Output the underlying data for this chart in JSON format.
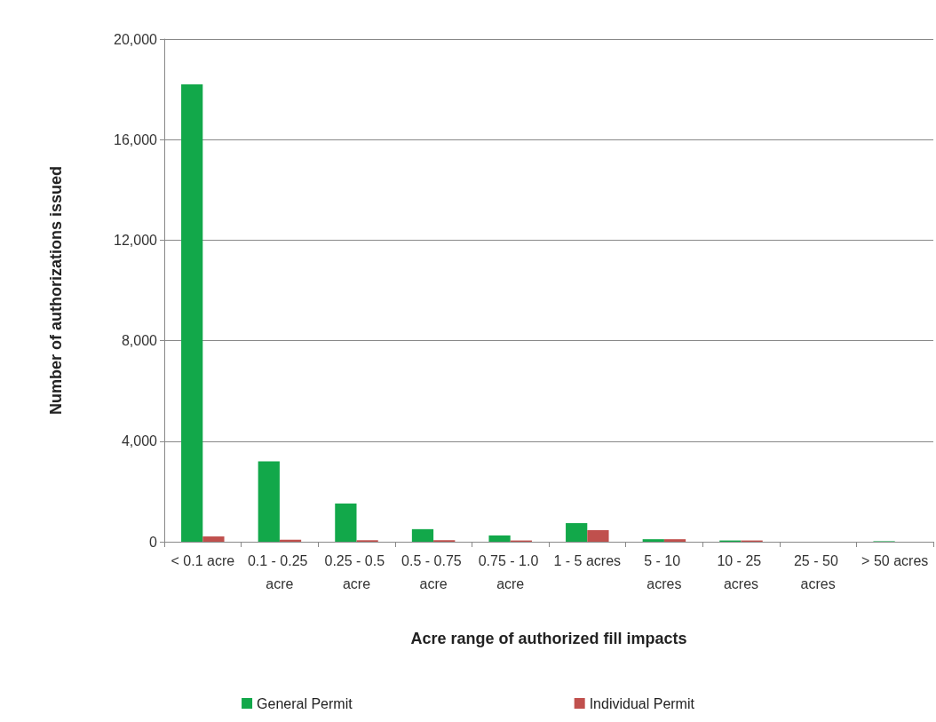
{
  "chart_data": {
    "type": "bar",
    "xlabel": "Acre range of authorized fill impacts",
    "ylabel": "Number of authorizations issued",
    "categories": [
      "< 0.1 acre",
      "0.1 - 0.25 acre",
      "0.25 - 0.5 acre",
      "0.5 - 0.75 acre",
      "0.75 - 1.0 acre",
      "1 - 5 acres",
      "5 - 10 acres",
      "10 - 25 acres",
      "25 - 50 acres",
      "> 50 acres"
    ],
    "series": [
      {
        "name": "General Permit",
        "color": "#12a84a",
        "values": [
          18200,
          3200,
          1520,
          500,
          250,
          740,
          100,
          50,
          0,
          20
        ]
      },
      {
        "name": "Individual Permit",
        "color": "#c0504d",
        "values": [
          210,
          80,
          60,
          60,
          50,
          460,
          100,
          50,
          0,
          null
        ]
      }
    ],
    "ylim": [
      0,
      20000
    ],
    "yticks": [
      0,
      {
        "value": 4000,
        "label": "4,000"
      },
      {
        "value": 8000,
        "label": "8,000"
      },
      {
        "value": 12000,
        "label": "12,000"
      },
      {
        "value": 16000,
        "label": "16,000"
      },
      {
        "value": 20000,
        "label": "20,000"
      }
    ],
    "grid": "y",
    "legend": "bottom"
  }
}
